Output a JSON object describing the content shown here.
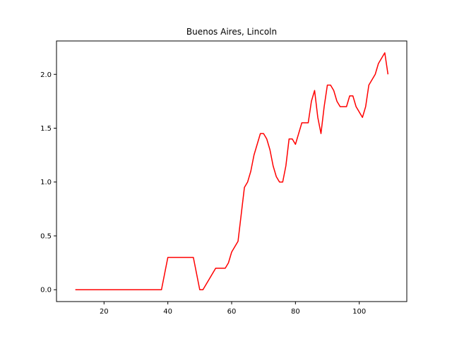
{
  "chart_data": {
    "type": "line",
    "title": "Buenos Aires, Lincoln",
    "xlabel": "",
    "ylabel": "",
    "xlim": [
      5.1,
      114.9
    ],
    "ylim": [
      -0.11,
      2.31
    ],
    "xticks": [
      20,
      40,
      60,
      80,
      100
    ],
    "yticks": [
      0.0,
      0.5,
      1.0,
      1.5,
      2.0
    ],
    "xtick_labels": [
      "20",
      "40",
      "60",
      "80",
      "100"
    ],
    "ytick_labels": [
      "0.0",
      "0.5",
      "1.0",
      "1.5",
      "2.0"
    ],
    "grid": false,
    "series": [
      {
        "color": "#ff0000",
        "points": [
          [
            11,
            0.0
          ],
          [
            38,
            0.0
          ],
          [
            40,
            0.3
          ],
          [
            48,
            0.3
          ],
          [
            50,
            0.0
          ],
          [
            51,
            0.0
          ],
          [
            53,
            0.1
          ],
          [
            55,
            0.2
          ],
          [
            58,
            0.2
          ],
          [
            59,
            0.25
          ],
          [
            60,
            0.35
          ],
          [
            62,
            0.45
          ],
          [
            63,
            0.7
          ],
          [
            64,
            0.95
          ],
          [
            65,
            1.0
          ],
          [
            66,
            1.1
          ],
          [
            67,
            1.25
          ],
          [
            68,
            1.35
          ],
          [
            69,
            1.45
          ],
          [
            70,
            1.45
          ],
          [
            71,
            1.4
          ],
          [
            72,
            1.3
          ],
          [
            73,
            1.15
          ],
          [
            74,
            1.05
          ],
          [
            75,
            1.0
          ],
          [
            76,
            1.0
          ],
          [
            77,
            1.15
          ],
          [
            78,
            1.4
          ],
          [
            79,
            1.4
          ],
          [
            80,
            1.35
          ],
          [
            81,
            1.45
          ],
          [
            82,
            1.55
          ],
          [
            84,
            1.55
          ],
          [
            85,
            1.75
          ],
          [
            86,
            1.85
          ],
          [
            87,
            1.6
          ],
          [
            88,
            1.45
          ],
          [
            89,
            1.7
          ],
          [
            90,
            1.9
          ],
          [
            91,
            1.9
          ],
          [
            92,
            1.85
          ],
          [
            93,
            1.75
          ],
          [
            94,
            1.7
          ],
          [
            96,
            1.7
          ],
          [
            97,
            1.8
          ],
          [
            98,
            1.8
          ],
          [
            99,
            1.7
          ],
          [
            101,
            1.6
          ],
          [
            102,
            1.7
          ],
          [
            103,
            1.9
          ],
          [
            104,
            1.95
          ],
          [
            105,
            2.0
          ],
          [
            106,
            2.1
          ],
          [
            108,
            2.2
          ],
          [
            109,
            2.0
          ]
        ]
      }
    ]
  }
}
